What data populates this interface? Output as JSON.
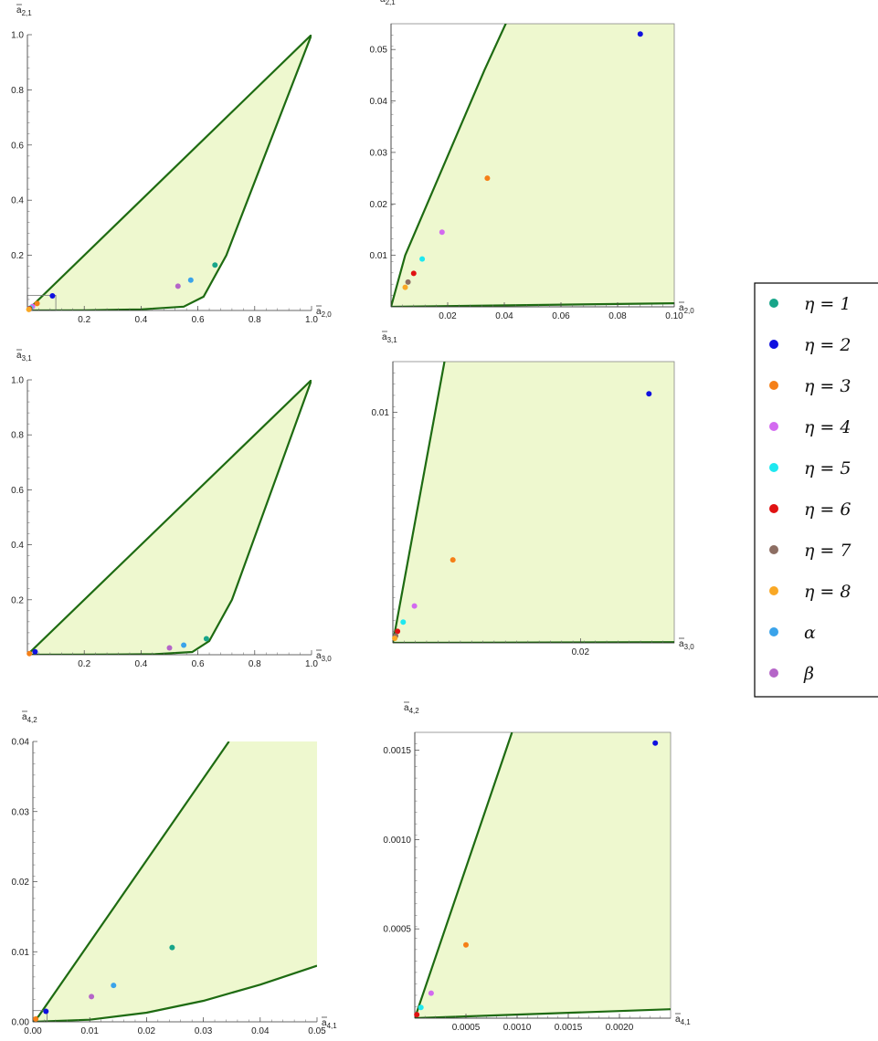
{
  "colors": {
    "region_fill": "#eef8cf",
    "boundary": "#1e6b12",
    "axis": "#333333",
    "eta1": "#17a589",
    "eta2": "#1010e0",
    "eta3": "#f57f17",
    "eta4": "#d36af0",
    "eta5": "#1ee8f0",
    "eta6": "#e01212",
    "eta7": "#8d6e63",
    "eta8": "#f9a825",
    "alpha": "#3aa3ea",
    "beta": "#b565c8"
  },
  "legend": {
    "items": [
      {
        "label": "η = 1",
        "color": "#17a589"
      },
      {
        "label": "η = 2",
        "color": "#1010e0"
      },
      {
        "label": "η = 3",
        "color": "#f57f17"
      },
      {
        "label": "η = 4",
        "color": "#d36af0"
      },
      {
        "label": "η = 5",
        "color": "#1ee8f0"
      },
      {
        "label": "η = 6",
        "color": "#e01212"
      },
      {
        "label": "η = 7",
        "color": "#8d6e63"
      },
      {
        "label": "η = 8",
        "color": "#f9a825"
      },
      {
        "label": "α",
        "color": "#3aa3ea"
      },
      {
        "label": "β",
        "color": "#b565c8"
      }
    ]
  },
  "chart_data": [
    {
      "type": "scatter",
      "xlabel": {
        "base": "a",
        "sub": "2,0"
      },
      "ylabel": {
        "base": "a",
        "sub": "2,1"
      },
      "xlim": [
        0,
        1.0
      ],
      "ylim": [
        0,
        1.0
      ],
      "xticks": [
        "0.2",
        "0.4",
        "0.6",
        "0.8",
        "1.0"
      ],
      "yticks": [
        "0.2",
        "0.4",
        "0.6",
        "0.8",
        "1.0"
      ],
      "region": {
        "upper": [
          [
            0,
            0
          ],
          [
            1,
            1
          ]
        ],
        "lower": [
          [
            0,
            0
          ],
          [
            0.2,
            0.0004
          ],
          [
            0.4,
            0.004
          ],
          [
            0.55,
            0.014
          ],
          [
            0.62,
            0.05
          ],
          [
            0.7,
            0.2
          ],
          [
            0.85,
            0.6
          ],
          [
            1,
            1
          ]
        ]
      },
      "inset_box": {
        "x": [
          0,
          0.1
        ],
        "y": [
          0,
          0.055
        ]
      },
      "points": [
        {
          "series": "eta1",
          "x": 0.66,
          "y": 0.165
        },
        {
          "series": "eta2",
          "x": 0.088,
          "y": 0.053
        },
        {
          "series": "eta3",
          "x": 0.034,
          "y": 0.025
        },
        {
          "series": "eta4",
          "x": 0.018,
          "y": 0.0145
        },
        {
          "series": "eta5",
          "x": 0.011,
          "y": 0.0093
        },
        {
          "series": "eta6",
          "x": 0.008,
          "y": 0.0065
        },
        {
          "series": "eta7",
          "x": 0.006,
          "y": 0.0048
        },
        {
          "series": "eta8",
          "x": 0.005,
          "y": 0.0038
        },
        {
          "series": "alpha",
          "x": 0.575,
          "y": 0.11
        },
        {
          "series": "beta",
          "x": 0.53,
          "y": 0.088
        }
      ]
    },
    {
      "type": "scatter",
      "xlabel": {
        "base": "a",
        "sub": "2,0"
      },
      "ylabel": {
        "base": "a",
        "sub": "2,1"
      },
      "xlim": [
        0,
        0.1
      ],
      "ylim": [
        0,
        0.055
      ],
      "xticks": [
        "0.02",
        "0.04",
        "0.06",
        "0.08",
        "0.10"
      ],
      "yticks": [
        "0.01",
        "0.02",
        "0.03",
        "0.04",
        "0.05"
      ],
      "region": {
        "upper": [
          [
            0,
            0
          ],
          [
            0.005,
            0.01
          ],
          [
            0.033,
            0.046
          ],
          [
            0.043,
            0.058
          ]
        ],
        "lower": [
          [
            0,
            0
          ],
          [
            0.1,
            0.0007
          ]
        ]
      },
      "points": [
        {
          "series": "eta2",
          "x": 0.088,
          "y": 0.053
        },
        {
          "series": "eta3",
          "x": 0.034,
          "y": 0.025
        },
        {
          "series": "eta4",
          "x": 0.018,
          "y": 0.0145
        },
        {
          "series": "eta5",
          "x": 0.011,
          "y": 0.0093
        },
        {
          "series": "eta6",
          "x": 0.008,
          "y": 0.0065
        },
        {
          "series": "eta7",
          "x": 0.006,
          "y": 0.0048
        },
        {
          "series": "eta8",
          "x": 0.005,
          "y": 0.0038
        }
      ]
    },
    {
      "type": "scatter",
      "xlabel": {
        "base": "a",
        "sub": "3,0"
      },
      "ylabel": {
        "base": "a",
        "sub": "3,1"
      },
      "xlim": [
        0,
        1.0
      ],
      "ylim": [
        0,
        1.0
      ],
      "xticks": [
        "0.2",
        "0.4",
        "0.6",
        "0.8",
        "1.0"
      ],
      "yticks": [
        "0.2",
        "0.4",
        "0.6",
        "0.8",
        "1.0"
      ],
      "region": {
        "upper": [
          [
            0,
            0
          ],
          [
            1,
            1
          ]
        ],
        "lower": [
          [
            0,
            0
          ],
          [
            0.2,
            0.0002
          ],
          [
            0.45,
            0.002
          ],
          [
            0.58,
            0.01
          ],
          [
            0.64,
            0.05
          ],
          [
            0.72,
            0.2
          ],
          [
            0.86,
            0.6
          ],
          [
            1,
            1
          ]
        ]
      },
      "points": [
        {
          "series": "eta1",
          "x": 0.63,
          "y": 0.058
        },
        {
          "series": "eta2",
          "x": 0.027,
          "y": 0.011
        },
        {
          "series": "eta3",
          "x": 0.007,
          "y": 0.004
        },
        {
          "series": "alpha",
          "x": 0.55,
          "y": 0.035
        },
        {
          "series": "beta",
          "x": 0.5,
          "y": 0.025
        }
      ]
    },
    {
      "type": "scatter",
      "xlabel": {
        "base": "a",
        "sub": "3,0"
      },
      "ylabel": {
        "base": "a",
        "sub": "3,1"
      },
      "xlim": [
        0,
        0.03
      ],
      "ylim": [
        0,
        0.0122
      ],
      "xticks": [
        "0.02"
      ],
      "yticks": [
        "0.01"
      ],
      "region": {
        "upper": [
          [
            0,
            0
          ],
          [
            0.0055,
            0.0122
          ]
        ],
        "lower": [
          [
            0,
            0
          ],
          [
            0.03,
            3e-05
          ]
        ]
      },
      "points": [
        {
          "series": "eta2",
          "x": 0.0273,
          "y": 0.0108
        },
        {
          "series": "eta3",
          "x": 0.0064,
          "y": 0.0036
        },
        {
          "series": "eta4",
          "x": 0.0023,
          "y": 0.0016
        },
        {
          "series": "eta5",
          "x": 0.0011,
          "y": 0.0009
        },
        {
          "series": "eta6",
          "x": 0.0005,
          "y": 0.0005
        },
        {
          "series": "eta7",
          "x": 0.0003,
          "y": 0.0003
        },
        {
          "series": "eta8",
          "x": 0.0002,
          "y": 0.0002
        }
      ]
    },
    {
      "type": "scatter",
      "xlabel": {
        "base": "a",
        "sub": "4,1"
      },
      "ylabel": {
        "base": "a",
        "sub": "4,2"
      },
      "xlim": [
        0,
        0.05
      ],
      "ylim": [
        0,
        0.04
      ],
      "xticks": [
        "0.00",
        "0.01",
        "0.02",
        "0.03",
        "0.04",
        "0.05"
      ],
      "yticks": [
        "0.00",
        "0.01",
        "0.02",
        "0.03",
        "0.04"
      ],
      "region": {
        "upper": [
          [
            0,
            0
          ],
          [
            0.001,
            0.0008
          ],
          [
            0.0345,
            0.04
          ]
        ],
        "lower": [
          [
            0,
            0
          ],
          [
            0.01,
            0.0003
          ],
          [
            0.02,
            0.0013
          ],
          [
            0.03,
            0.003
          ],
          [
            0.04,
            0.0053
          ],
          [
            0.05,
            0.008
          ]
        ]
      },
      "inset_box": {
        "x": [
          0,
          0.0025
        ],
        "y": [
          0,
          0.0016
        ]
      },
      "points": [
        {
          "series": "eta1",
          "x": 0.0245,
          "y": 0.0106
        },
        {
          "series": "eta2",
          "x": 0.0023,
          "y": 0.0015
        },
        {
          "series": "eta3",
          "x": 0.0005,
          "y": 0.0004
        },
        {
          "series": "alpha",
          "x": 0.0142,
          "y": 0.0052
        },
        {
          "series": "beta",
          "x": 0.0103,
          "y": 0.0036
        }
      ]
    },
    {
      "type": "scatter",
      "xlabel": {
        "base": "a",
        "sub": "4,1"
      },
      "ylabel": {
        "base": "a",
        "sub": "4,2"
      },
      "xlim": [
        0,
        0.0025
      ],
      "ylim": [
        0,
        0.0016
      ],
      "xticks": [
        "0.0005",
        "0.0010",
        "0.0015",
        "0.0020"
      ],
      "yticks": [
        "0.0005",
        "0.0010",
        "0.0015"
      ],
      "region": {
        "upper": [
          [
            0,
            0
          ],
          [
            0.00095,
            0.0016
          ]
        ],
        "lower": [
          [
            0,
            0
          ],
          [
            0.0025,
            5e-05
          ]
        ]
      },
      "points": [
        {
          "series": "eta2",
          "x": 0.00235,
          "y": 0.00154
        },
        {
          "series": "eta3",
          "x": 0.0005,
          "y": 0.00041
        },
        {
          "series": "eta4",
          "x": 0.00016,
          "y": 0.00014
        },
        {
          "series": "eta5",
          "x": 6e-05,
          "y": 6e-05
        },
        {
          "series": "eta6",
          "x": 2e-05,
          "y": 2e-05
        }
      ]
    }
  ]
}
